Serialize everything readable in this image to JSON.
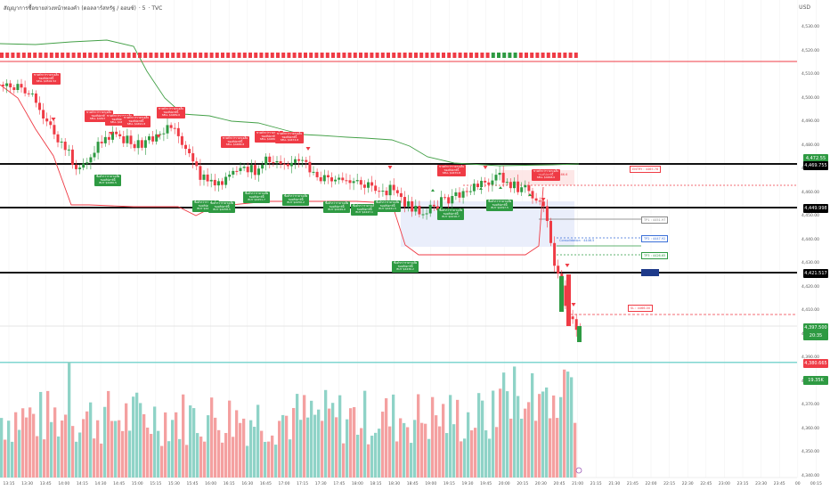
{
  "header": {
    "symbol": "สัญญาการซื้อขายล่วงหน้าทองคำ (ดอลลาร์สหรัฐ / ออนซ์)",
    "interval": "5",
    "source": "TVC",
    "currency": "USD"
  },
  "price_axis": {
    "ticks": [
      "4,530.00",
      "4,520.00",
      "4,510.00",
      "4,500.00",
      "4,490.00",
      "4,480.00",
      "4,470.00",
      "4,460.00",
      "4,450.00",
      "4,440.00",
      "4,430.00",
      "4,420.00",
      "4,410.00",
      "4,400.00",
      "4,390.00",
      "4,380.00",
      "4,370.00",
      "4,360.00",
      "4,350.00",
      "4,340.00"
    ],
    "labels": [
      {
        "text": "4,472.55",
        "color": "#2e9a42"
      },
      {
        "text": "4,469.755",
        "color": "#000000"
      },
      {
        "text": "4,449.998",
        "color": "#000000"
      },
      {
        "text": "4,421.517",
        "color": "#000000"
      },
      {
        "text": "4,397.500",
        "color": "#2e9a42"
      },
      {
        "text": "20:35",
        "color": "#2e9a42"
      },
      {
        "text": "4,380.665",
        "color": "#ef3b45"
      },
      {
        "text": "19.35K",
        "color": "#2e9a42"
      }
    ]
  },
  "time_axis": [
    "13:15",
    "13:30",
    "13:45",
    "14:00",
    "14:15",
    "14:30",
    "14:45",
    "15:00",
    "15:15",
    "15:30",
    "15:45",
    "16:00",
    "16:15",
    "16:30",
    "16:45",
    "17:00",
    "17:15",
    "17:30",
    "17:45",
    "18:00",
    "18:15",
    "18:30",
    "18:45",
    "19:00",
    "19:15",
    "19:30",
    "19:45",
    "20:00",
    "20:15",
    "20:30",
    "20:45",
    "21:00",
    "21:15",
    "21:30",
    "21:45",
    "22:00",
    "22:15",
    "22:30",
    "22:45",
    "23:00",
    "23:15",
    "23:30",
    "23:45",
    "00",
    "00:15"
  ],
  "sell_signal": {
    "line1": "ขายต่ำกว่าราคาเฉลี่ย",
    "line2": "ของสัปดาห์นี้",
    "prefix": "SELL"
  },
  "buy_signal": {
    "line1": "ซื้อต่ำกว่าราคาเฉลี่ย",
    "line2": "ของสัปดาห์นี้",
    "prefix": "BUY"
  },
  "sell_signals": [
    {
      "price": "$4502.52"
    },
    {
      "price": "$4497.1"
    },
    {
      "price": "$4493.5"
    },
    {
      "price": "$4491.8"
    },
    {
      "price": "$4489.0"
    },
    {
      "price": "$4488.8"
    },
    {
      "price": "$4480.1"
    },
    {
      "price": "$4474.8"
    },
    {
      "price": "$4470.8"
    },
    {
      "price": "$4468.0"
    }
  ],
  "buy_signals": [
    {
      "price": "$4480.5"
    },
    {
      "price": "$4461.9"
    },
    {
      "price": "$4458.5"
    },
    {
      "price": "$4451.7"
    },
    {
      "price": "$4450.2"
    },
    {
      "price": "$4449.0"
    },
    {
      "price": "$4447.1"
    },
    {
      "price": "$4441.5"
    },
    {
      "price": "$4436.2"
    },
    {
      "price": "$4416.7"
    },
    {
      "price": "$4397.5"
    }
  ],
  "levels": [
    {
      "label": "TP1 : 4451.97",
      "color": "#888888"
    },
    {
      "label": "TP2 : 4447.92",
      "color": "#3a6fd8"
    },
    {
      "label": "TP3 : 4426.65",
      "color": "#2e9a42"
    },
    {
      "label": "SL : 4466.00",
      "color": "#ef3b45"
    },
    {
      "label": "ENTRY : 4465.78",
      "color": "#ef3b45"
    }
  ],
  "zone_labels": {
    "red": "Consolidation · 4466.6",
    "blue": "Consolidation · 4446.5"
  },
  "colors": {
    "bull": "#26a69a",
    "bull_candle": "#2e9a42",
    "bear": "#ef3b45",
    "vol_bull": "#8fd3c7",
    "vol_bear": "#f4a0a0",
    "band_upper": "#43a047",
    "band_lower": "#ef3b45"
  },
  "chart_data": {
    "type": "candlestick",
    "ylim": [
      4335,
      4535
    ],
    "horizontal_levels": [
      4472.55,
      4469.755,
      4449.998,
      4421.517,
      4397.5,
      4380.665
    ],
    "last_price": 4397.5,
    "last_volume": "19.35K",
    "x": [
      "13:15",
      "13:30",
      "13:45",
      "14:00",
      "14:15",
      "14:30",
      "14:45",
      "15:00",
      "15:15",
      "15:30",
      "15:45",
      "16:00",
      "16:15",
      "16:30",
      "16:45",
      "17:00",
      "17:15",
      "17:30",
      "17:45",
      "18:00",
      "18:15",
      "18:30",
      "18:45",
      "19:00",
      "19:15",
      "19:30",
      "19:45",
      "20:00",
      "20:15",
      "20:30",
      "20:45",
      "21:00"
    ],
    "close": [
      4502,
      4497,
      4478,
      4488,
      4492,
      4490,
      4487,
      4484,
      4488,
      4473,
      4466,
      4470,
      4474,
      4478,
      4480,
      4476,
      4472,
      4468,
      4466,
      4463,
      4458,
      4452,
      4446,
      4450,
      4454,
      4458,
      4462,
      4470,
      4465,
      4455,
      4430,
      4397.5
    ]
  }
}
